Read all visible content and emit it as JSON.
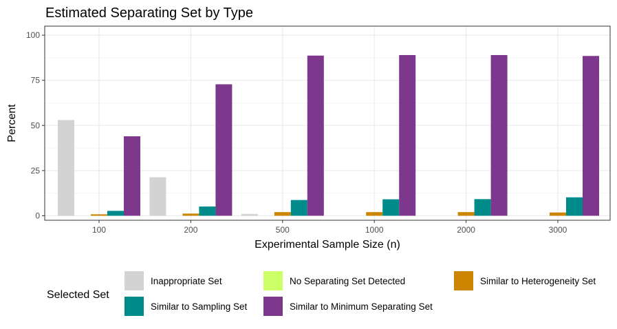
{
  "chart_data": {
    "type": "bar",
    "title": "Estimated Separating Set by Type",
    "xlabel": "Experimental Sample Size (n)",
    "ylabel": "Percent",
    "ylim": [
      -2.5,
      105
    ],
    "yticks": [
      0,
      25,
      50,
      75,
      100
    ],
    "grid": true,
    "categories": [
      "100",
      "200",
      "500",
      "1000",
      "2000",
      "3000"
    ],
    "series": [
      {
        "name": "Inappropriate Set",
        "color": "#D3D3D3",
        "values": [
          53.0,
          21.3,
          1.0,
          0,
          0,
          0
        ]
      },
      {
        "name": "No Separating Set Detected",
        "color": "#CCFF66",
        "values": [
          0,
          0,
          0,
          0,
          0,
          0
        ]
      },
      {
        "name": "Similar to Heterogeneity Set",
        "color": "#CD8500",
        "values": [
          0.8,
          1.2,
          2.0,
          2.0,
          2.0,
          1.8
        ]
      },
      {
        "name": "Similar to Sampling Set",
        "color": "#008B8B",
        "values": [
          2.7,
          5.1,
          8.7,
          9.1,
          9.2,
          10.2
        ]
      },
      {
        "name": "Similar to Minimum Separating Set",
        "color": "#7D378C",
        "values": [
          44.0,
          72.8,
          88.7,
          89.0,
          89.0,
          88.5
        ]
      }
    ],
    "legend": {
      "title": "Selected Set",
      "position": "bottom"
    }
  }
}
